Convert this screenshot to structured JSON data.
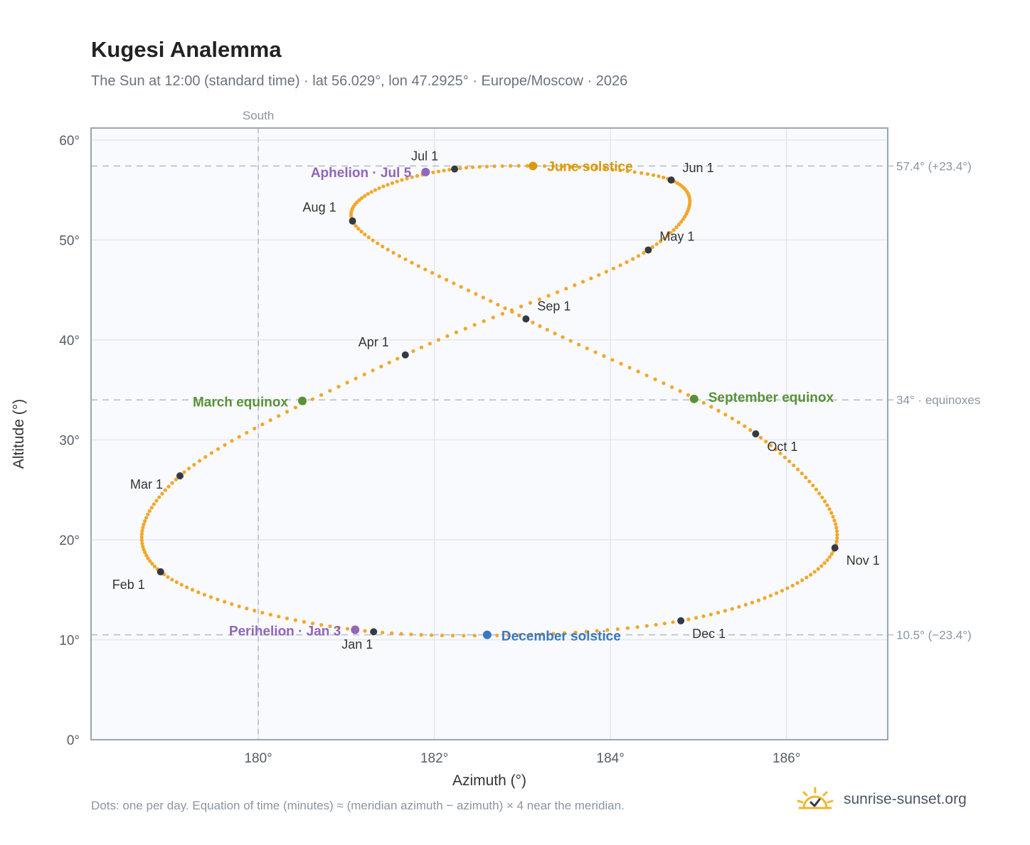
{
  "header": {
    "title": "Kugesi Analemma",
    "subtitle": "The Sun at 12:00 (standard time) · lat 56.029°, lon 47.2925° · Europe/Moscow · 2026"
  },
  "footer": {
    "note": "Dots: one per day. Equation of time (minutes) ≈ (meridian azimuth − azimuth) × 4 near the meridian.",
    "brand": "sunrise-sunset.org",
    "brand_icon": "sun-icon"
  },
  "colors": {
    "dots": "#f3a62b",
    "month": "#333a45",
    "june_solstice": "#d79a0b",
    "december_solstice": "#3a78c0",
    "equinox": "#5a9138",
    "apsis": "#9166b8",
    "grid": "#e3e8ee",
    "plot_bg": "#f8fafd",
    "frame": "#9aa5b2",
    "reference": "#b4bcc5"
  },
  "chart_data": {
    "type": "scatter",
    "title": "Kugesi Analemma",
    "xlabel": "Azimuth (°)",
    "ylabel": "Altitude (°)",
    "xlim": [
      178.1,
      187.15
    ],
    "ylim": [
      0,
      61.2
    ],
    "x_ticks": [
      180,
      182,
      184,
      186
    ],
    "x_tick_labels": [
      "180°",
      "182°",
      "184°",
      "186°"
    ],
    "y_ticks": [
      0,
      10,
      20,
      30,
      40,
      50,
      60
    ],
    "y_tick_labels": [
      "0°",
      "10°",
      "20°",
      "30°",
      "40°",
      "50°",
      "60°"
    ],
    "grid": true,
    "south_line": {
      "azimuth": 180,
      "label": "South"
    },
    "reference_lines": [
      {
        "altitude": 57.4,
        "label": "57.4° (+23.4°)"
      },
      {
        "altitude": 34,
        "label": "34° · equinoxes"
      },
      {
        "altitude": 10.5,
        "label": "10.5° (−23.4°)"
      }
    ],
    "month_markers": [
      {
        "label": "Jan 1",
        "azimuth": 181.31,
        "altitude": 10.8
      },
      {
        "label": "Feb 1",
        "azimuth": 178.89,
        "altitude": 16.8
      },
      {
        "label": "Mar 1",
        "azimuth": 179.11,
        "altitude": 26.4
      },
      {
        "label": "Apr 1",
        "azimuth": 181.67,
        "altitude": 38.5
      },
      {
        "label": "May 1",
        "azimuth": 184.43,
        "altitude": 49.0
      },
      {
        "label": "Jun 1",
        "azimuth": 184.69,
        "altitude": 56.0
      },
      {
        "label": "Jul 1",
        "azimuth": 182.23,
        "altitude": 57.1
      },
      {
        "label": "Aug 1",
        "azimuth": 181.07,
        "altitude": 51.9
      },
      {
        "label": "Sep 1",
        "azimuth": 183.04,
        "altitude": 42.1
      },
      {
        "label": "Oct 1",
        "azimuth": 185.65,
        "altitude": 30.6
      },
      {
        "label": "Nov 1",
        "azimuth": 186.55,
        "altitude": 19.2
      },
      {
        "label": "Dec 1",
        "azimuth": 184.8,
        "altitude": 11.9
      }
    ],
    "events": [
      {
        "label": "June solstice",
        "azimuth": 183.12,
        "altitude": 57.4,
        "kind": "june_solstice"
      },
      {
        "label": "December solstice",
        "azimuth": 182.6,
        "altitude": 10.5,
        "kind": "december_solstice"
      },
      {
        "label": "March equinox",
        "azimuth": 180.5,
        "altitude": 33.9,
        "kind": "equinox"
      },
      {
        "label": "September equinox",
        "azimuth": 184.95,
        "altitude": 34.1,
        "kind": "equinox"
      },
      {
        "label": "Aphelion · Jul 5",
        "azimuth": 181.9,
        "altitude": 56.8,
        "kind": "apsis"
      },
      {
        "label": "Perihelion · Jan 3",
        "azimuth": 181.1,
        "altitude": 11.0,
        "kind": "apsis"
      }
    ]
  }
}
